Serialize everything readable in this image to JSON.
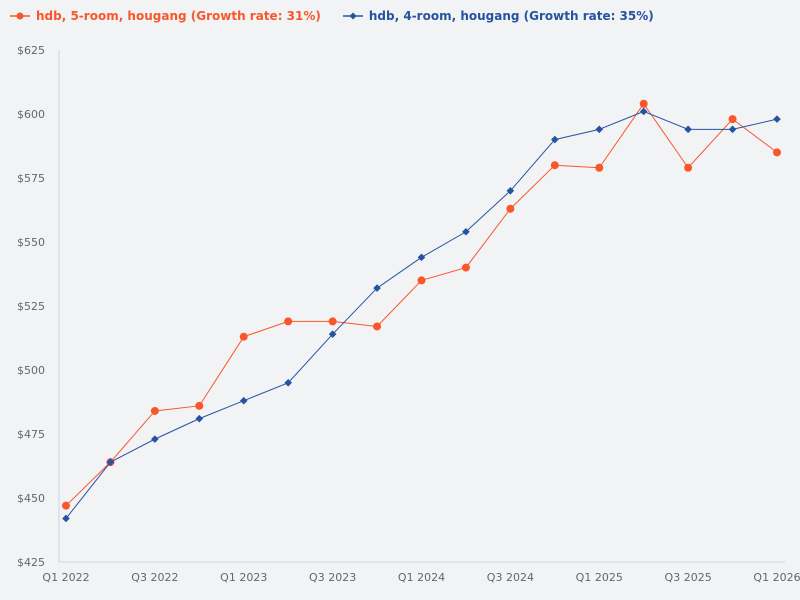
{
  "legend": [
    {
      "label": "hdb, 5-room, hougang (Growth rate: 31%)",
      "color": "#f9572a",
      "marker": "circle"
    },
    {
      "label": "hdb, 4-room, hougang (Growth rate: 35%)",
      "color": "#2653a0",
      "marker": "diamond"
    }
  ],
  "chart_data": {
    "type": "line",
    "title": "",
    "xlabel": "",
    "ylabel": "",
    "x": [
      "Q1 2022",
      "Q2 2022",
      "Q3 2022",
      "Q4 2022",
      "Q1 2023",
      "Q2 2023",
      "Q3 2023",
      "Q4 2023",
      "Q1 2024",
      "Q2 2024",
      "Q3 2024",
      "Q4 2024",
      "Q1 2025",
      "Q2 2025",
      "Q3 2025",
      "Q4 2025",
      "Q1 2026"
    ],
    "x_tick_labels": [
      "Q1 2022",
      "Q3 2022",
      "Q1 2023",
      "Q3 2023",
      "Q1 2024",
      "Q3 2024",
      "Q1 2025",
      "Q3 2025",
      "Q1 2026"
    ],
    "y_tick_labels": [
      "$425",
      "$450",
      "$475",
      "$500",
      "$525",
      "$550",
      "$575",
      "$600",
      "$625"
    ],
    "ylim": [
      425,
      625
    ],
    "grid": false,
    "legend_position": "top-left",
    "series": [
      {
        "name": "hdb, 5-room, hougang (Growth rate: 31%)",
        "color": "#f9572a",
        "marker": "circle",
        "values": [
          447,
          464,
          484,
          486,
          513,
          519,
          519,
          517,
          535,
          540,
          563,
          580,
          579,
          604,
          579,
          598,
          585
        ]
      },
      {
        "name": "hdb, 4-room, hougang (Growth rate: 35%)",
        "color": "#2653a0",
        "marker": "diamond",
        "values": [
          442,
          464,
          473,
          481,
          488,
          495,
          514,
          532,
          544,
          554,
          570,
          590,
          594,
          601,
          594,
          594,
          598
        ]
      }
    ]
  }
}
